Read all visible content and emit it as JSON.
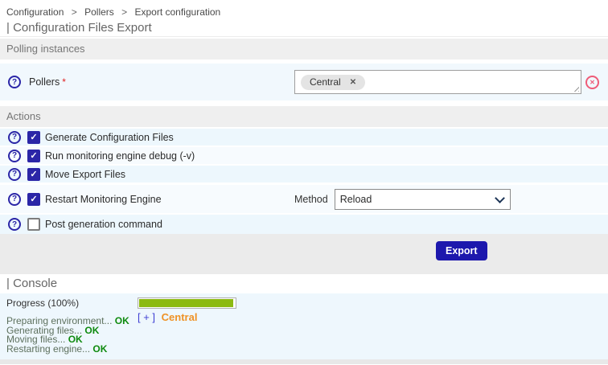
{
  "breadcrumb": {
    "separator": ">",
    "items": [
      "Configuration",
      "Pollers",
      "Export configuration"
    ]
  },
  "page": {
    "title": "| Configuration Files Export"
  },
  "polling": {
    "header": "Polling instances",
    "pollers_label": "Pollers",
    "required_mark": "*",
    "selected": [
      {
        "label": "Central"
      }
    ]
  },
  "icons": {
    "help": "?",
    "tag_remove": "✕",
    "clear": "✕"
  },
  "actions": {
    "header": "Actions",
    "items": [
      {
        "label": "Generate Configuration Files",
        "checked": true
      },
      {
        "label": "Run monitoring engine debug (-v)",
        "checked": true
      },
      {
        "label": "Move Export Files",
        "checked": true
      },
      {
        "label": "Restart Monitoring Engine",
        "checked": true,
        "method_label": "Method",
        "method_value": "Reload"
      },
      {
        "label": "Post generation command",
        "checked": false
      }
    ],
    "export_button": "Export"
  },
  "console": {
    "title": "| Console",
    "progress_label": "Progress",
    "progress_percent_text": "(100%)",
    "progress_value": 100,
    "expand_token": "[ + ]",
    "poller_name": "Central",
    "log_lines": [
      {
        "text": "Preparing environment...",
        "status": "OK"
      },
      {
        "text": "Generating files...",
        "status": "OK"
      },
      {
        "text": "Moving files...",
        "status": "OK"
      },
      {
        "text": "Restarting engine...",
        "status": "OK"
      }
    ]
  },
  "colors": {
    "accent_navy": "#2b26a7",
    "button_navy": "#1d18ad",
    "row_blue": "#edf7fd",
    "row_pale": "#f7fbfe",
    "section_gray": "#efefef",
    "area_gray": "#ebebeb",
    "progress_green": "#8cba11",
    "poller_orange": "#ef9226",
    "expand_blue": "#3f3fd3",
    "clear_red": "#ee5c78",
    "ok_green": "#0e8a0e",
    "required_red": "#e02020"
  }
}
